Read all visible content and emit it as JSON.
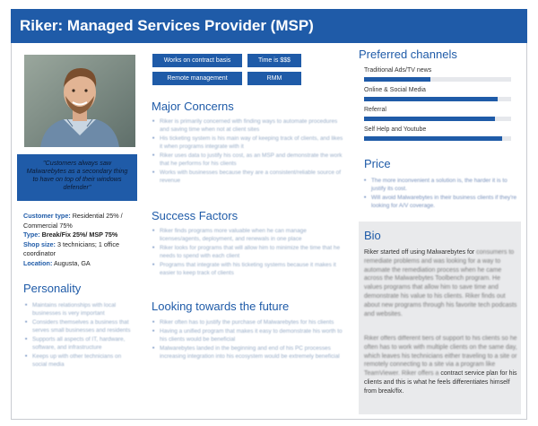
{
  "header": {
    "title": "Riker: Managed Services Provider (MSP)"
  },
  "profile": {
    "quote": "\"Customers always saw Malwarebytes as a secondary thing to have on top of their windows defender\"",
    "customer_type_label": "Customer type:",
    "customer_type_value": "Residential 25% / Commercial 75%",
    "type_label": "Type:",
    "type_value": "Break/Fix 25%/ MSP 75%",
    "shop_size_label": "Shop size:",
    "shop_size_value": "3 technicians; 1 office coordinator",
    "location_label": "Location:",
    "location_value": "Augusta, GA"
  },
  "personality": {
    "title": "Personality",
    "items": [
      "Maintains relationships with local businesses is very important",
      "Considers themselves a business that serves small businesses and residents",
      "Supports all aspects of IT, hardware, software, and infrastructure",
      "Keeps up with other technicians on social media"
    ]
  },
  "tags": [
    "Works on contract basis",
    "Time is $$$",
    "Remote management",
    "RMM"
  ],
  "major_concerns": {
    "title": "Major Concerns",
    "items": [
      "Riker is primarily concerned with finding ways to automate procedures and saving time when not at client sites",
      "His ticketing system is his main way of keeping track of clients, and likes it when programs integrate with it",
      "Riker uses data to justify his cost, as an MSP and demonstrate the work that he performs for his clients",
      "Works with businesses because they are a consistent/reliable source of revenue"
    ]
  },
  "success_factors": {
    "title": "Success Factors",
    "items": [
      "Riker finds programs more valuable when he can manage licenses/agents, deployment, and renewals in one place",
      "Riker looks for programs that will allow him to minimize the time that he needs to spend with each client",
      "Programs that integrate with his ticketing systems because it makes it easier to keep track of clients"
    ]
  },
  "future": {
    "title": "Looking towards the future",
    "items": [
      "Riker often has to justify the purchase of Malwarebytes for his clients",
      "Having a unified program that makes it easy to demonstrate his worth to his clients would be beneficial",
      "Malwarebytes landed in the beginning and end of his PC processes increasing integration into his ecosystem would be extremely beneficial"
    ]
  },
  "preferred_channels": {
    "title": "Preferred channels",
    "items": [
      {
        "label": "Traditional Ads/TV news",
        "value": 0.45
      },
      {
        "label": "Online & Social Media",
        "value": 0.91
      },
      {
        "label": "Referral",
        "value": 0.89
      },
      {
        "label": "Self Help and Youtube",
        "value": 0.94
      }
    ]
  },
  "price": {
    "title": "Price",
    "items": [
      "The more inconvenient a solution is, the harder it is to justify its cost.",
      "Will avoid Malwarebytes in their business clients if they're looking for A/V coverage."
    ]
  },
  "bio": {
    "title": "Bio",
    "para1_clear": "Riker started off using Malwarebytes for",
    "para1_blur": "consumers to remediate problems and was looking for a way to automate the remediation process when he came across the Malwarebytes Toolbench program. He values programs that allow him to save time and demonstrate his value to his clients. Riker finds out about new programs through his favorite tech podcasts and websites.",
    "para1_end": "",
    "para2_blur": "Riker offers different tiers of support to his clients so he often has to work with multiple clients on the same day, which leaves his technicians either traveling to a site or remotely connecting to a site via a program like TeamViewer. Riker offers a",
    "para2_clear": "contract service plan for his clients and this is what he feels differentiates himself from break/fix."
  },
  "colors": {
    "primary": "#1f5ba8",
    "bio_bg": "#e9eaec"
  }
}
